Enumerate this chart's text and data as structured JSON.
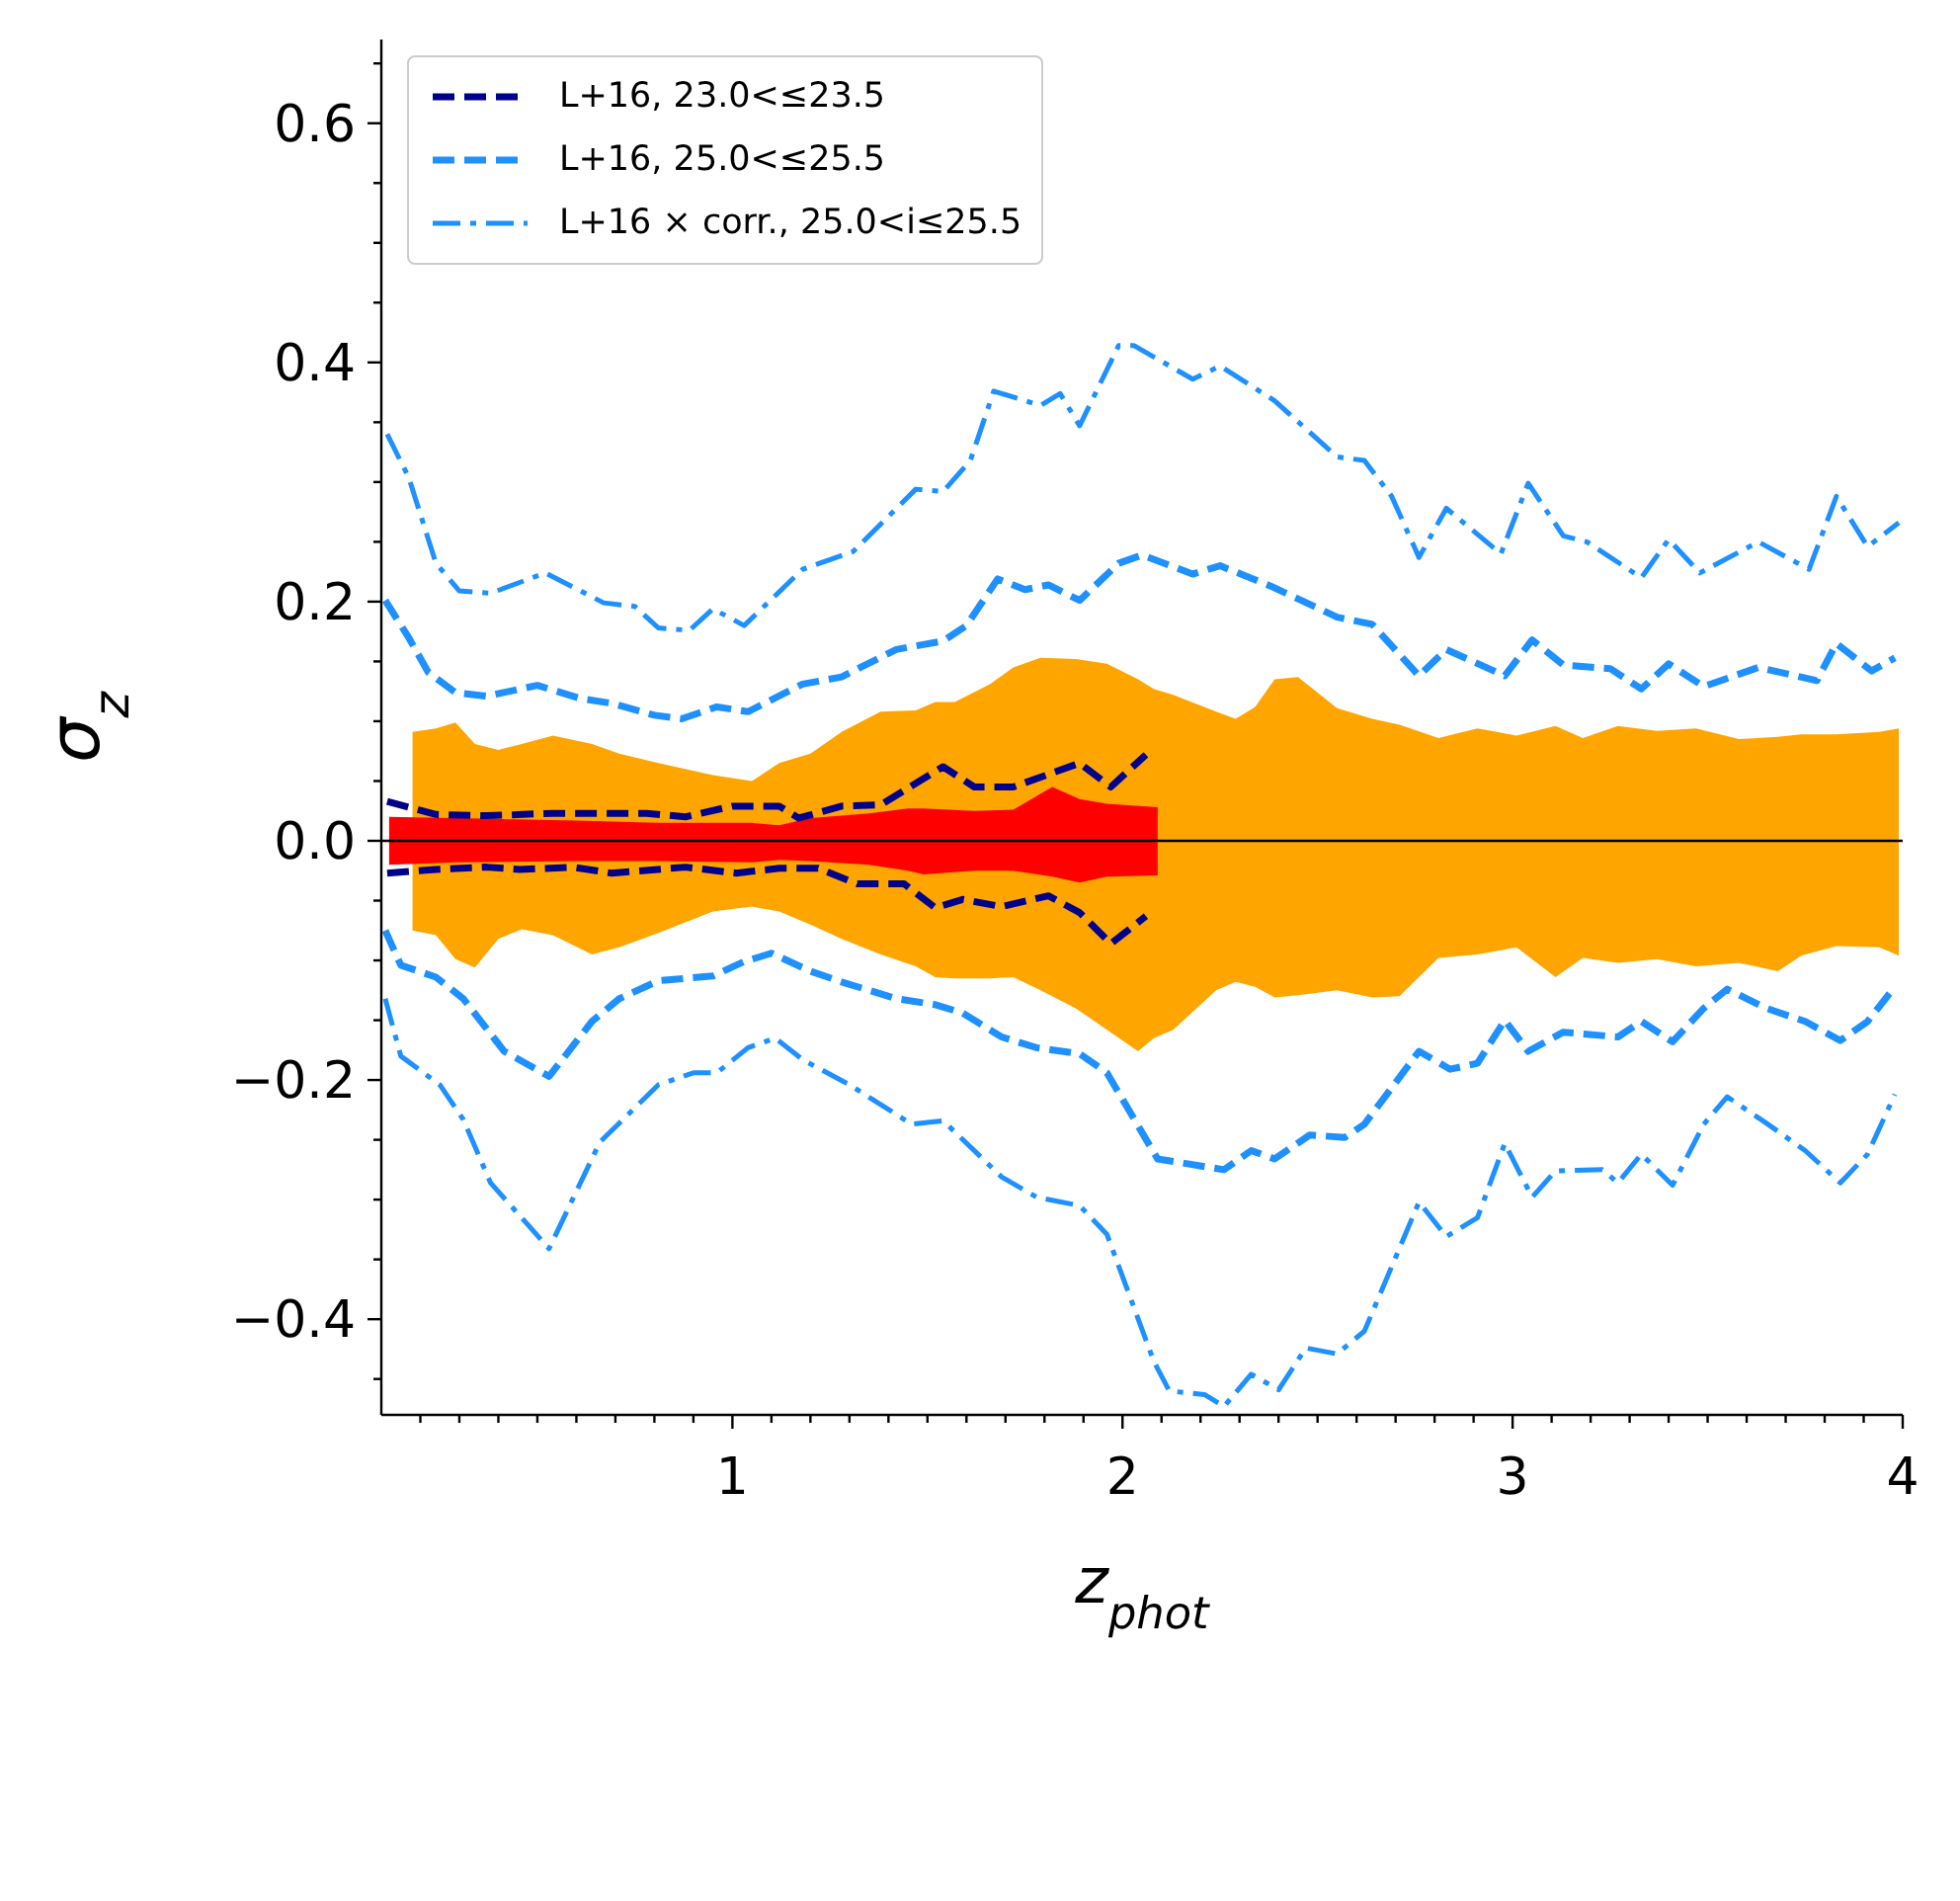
{
  "chart_data": {
    "type": "line",
    "xlabel": "z$_{phot}$",
    "ylabel": "σ$_{z}$",
    "xlim": [
      0.1,
      4
    ],
    "ylim": [
      -0.48,
      0.67
    ],
    "xticks": [
      {
        "value": 0.2,
        "label": null
      },
      {
        "value": 0.3,
        "label": null
      },
      {
        "value": 0.4,
        "label": null
      },
      {
        "value": 0.5,
        "label": null
      },
      {
        "value": 0.6,
        "label": null
      },
      {
        "value": 0.7,
        "label": null
      },
      {
        "value": 0.8,
        "label": null
      },
      {
        "value": 0.9,
        "label": null
      },
      1,
      {
        "value": 1.1,
        "label": null
      },
      {
        "value": 1.2,
        "label": null
      },
      {
        "value": 1.3,
        "label": null
      },
      {
        "value": 1.4,
        "label": null
      },
      {
        "value": 1.5,
        "label": null
      },
      {
        "value": 1.6,
        "label": null
      },
      {
        "value": 1.7,
        "label": null
      },
      {
        "value": 1.8,
        "label": null
      },
      {
        "value": 1.9,
        "label": null
      },
      2,
      {
        "value": 2.1,
        "label": null
      },
      {
        "value": 2.2,
        "label": null
      },
      {
        "value": 2.3,
        "label": null
      },
      {
        "value": 2.4,
        "label": null
      },
      {
        "value": 2.5,
        "label": null
      },
      {
        "value": 2.6,
        "label": null
      },
      {
        "value": 2.7,
        "label": null
      },
      {
        "value": 2.8,
        "label": null
      },
      {
        "value": 2.9,
        "label": null
      },
      3,
      {
        "value": 3.1,
        "label": null
      },
      {
        "value": 3.2,
        "label": null
      },
      {
        "value": 3.3,
        "label": null
      },
      {
        "value": 3.4,
        "label": null
      },
      {
        "value": 3.5,
        "label": null
      },
      {
        "value": 3.6,
        "label": null
      },
      {
        "value": 3.7,
        "label": null
      },
      {
        "value": 3.8,
        "label": null
      },
      {
        "value": 3.9,
        "label": null
      },
      4
    ],
    "yticks": [
      {
        "value": -0.45,
        "label": null
      },
      {
        "value": -0.4,
        "label": "−0.4"
      },
      {
        "value": -0.35,
        "label": null
      },
      {
        "value": -0.3,
        "label": null
      },
      {
        "value": -0.25,
        "label": null
      },
      {
        "value": -0.2,
        "label": "−0.2"
      },
      {
        "value": -0.15,
        "label": null
      },
      {
        "value": -0.1,
        "label": null
      },
      {
        "value": -0.05,
        "label": null
      },
      {
        "value": 0,
        "label": "0.0"
      },
      {
        "value": 0.05,
        "label": null
      },
      {
        "value": 0.1,
        "label": null
      },
      {
        "value": 0.15,
        "label": null
      },
      0.2,
      {
        "value": 0.25,
        "label": null
      },
      {
        "value": 0.3,
        "label": null
      },
      {
        "value": 0.35,
        "label": null
      },
      0.4,
      {
        "value": 0.45,
        "label": null
      },
      {
        "value": 0.5,
        "label": null
      },
      {
        "value": 0.55,
        "label": null
      },
      0.6,
      {
        "value": 0.65,
        "label": null
      }
    ],
    "legend": "top left",
    "ref_lines": [
      {
        "axis": "y",
        "value": 0,
        "color": "#000000"
      }
    ],
    "series": [
      {
        "type": "area",
        "color": "#ffa500",
        "x": [
          0.18,
          0.24,
          0.29,
          0.34,
          0.4,
          0.46,
          0.54,
          0.64,
          0.71,
          0.81,
          0.95,
          1.05,
          1.12,
          1.2,
          1.28,
          1.38,
          1.47,
          1.52,
          1.57,
          1.66,
          1.72,
          1.79,
          1.88,
          1.96,
          2.04,
          2.08,
          2.13,
          2.24,
          2.29,
          2.34,
          2.39,
          2.45,
          2.55,
          2.64,
          2.71,
          2.81,
          2.91,
          3.01,
          3.11,
          3.18,
          3.27,
          3.37,
          3.47,
          3.58,
          3.68,
          3.74,
          3.83,
          3.94,
          3.99
        ],
        "values": [
          0.091,
          0.094,
          0.099,
          0.081,
          0.076,
          0.081,
          0.088,
          0.081,
          0.073,
          0.065,
          0.055,
          0.05,
          0.065,
          0.073,
          0.091,
          0.108,
          0.109,
          0.116,
          0.116,
          0.131,
          0.145,
          0.153,
          0.152,
          0.148,
          0.135,
          0.127,
          0.122,
          0.108,
          0.102,
          0.112,
          0.135,
          0.137,
          0.111,
          0.102,
          0.097,
          0.086,
          0.094,
          0.088,
          0.096,
          0.086,
          0.096,
          0.092,
          0.094,
          0.085,
          0.087,
          0.089,
          0.089,
          0.091,
          0.094
        ]
      },
      {
        "type": "area",
        "color": "#ffa500",
        "x": [
          0.18,
          0.24,
          0.29,
          0.34,
          0.4,
          0.46,
          0.54,
          0.64,
          0.71,
          0.81,
          0.95,
          1.05,
          1.12,
          1.2,
          1.28,
          1.38,
          1.47,
          1.52,
          1.57,
          1.66,
          1.72,
          1.79,
          1.88,
          1.96,
          2.04,
          2.08,
          2.13,
          2.24,
          2.29,
          2.34,
          2.39,
          2.45,
          2.55,
          2.64,
          2.71,
          2.81,
          2.91,
          3.01,
          3.11,
          3.18,
          3.27,
          3.37,
          3.47,
          3.58,
          3.68,
          3.74,
          3.83,
          3.94,
          3.99
        ],
        "values": [
          -0.075,
          -0.079,
          -0.099,
          -0.106,
          -0.082,
          -0.074,
          -0.079,
          -0.095,
          -0.089,
          -0.077,
          -0.059,
          -0.055,
          -0.059,
          -0.07,
          -0.082,
          -0.095,
          -0.105,
          -0.114,
          -0.115,
          -0.115,
          -0.114,
          -0.125,
          -0.14,
          -0.158,
          -0.176,
          -0.165,
          -0.158,
          -0.125,
          -0.118,
          -0.122,
          -0.131,
          -0.129,
          -0.125,
          -0.131,
          -0.13,
          -0.098,
          -0.095,
          -0.089,
          -0.114,
          -0.098,
          -0.102,
          -0.099,
          -0.105,
          -0.102,
          -0.109,
          -0.096,
          -0.088,
          -0.089,
          -0.096
        ]
      },
      {
        "type": "area",
        "color": "#ff0000",
        "x": [
          0.12,
          0.29,
          0.6,
          0.81,
          1.05,
          1.12,
          1.2,
          1.35,
          1.45,
          1.49,
          1.62,
          1.72,
          1.82,
          1.89,
          1.96,
          2.09
        ],
        "values": [
          0.02,
          0.019,
          0.017,
          0.015,
          0.015,
          0.013,
          0.019,
          0.023,
          0.027,
          0.027,
          0.025,
          0.026,
          0.045,
          0.035,
          0.031,
          0.028
        ]
      },
      {
        "type": "area",
        "color": "#ff0000",
        "x": [
          0.12,
          0.29,
          0.6,
          0.81,
          1.05,
          1.12,
          1.2,
          1.35,
          1.45,
          1.49,
          1.62,
          1.72,
          1.82,
          1.89,
          1.96,
          2.09
        ],
        "values": [
          -0.02,
          -0.018,
          -0.017,
          -0.017,
          -0.018,
          -0.016,
          -0.017,
          -0.02,
          -0.025,
          -0.028,
          -0.025,
          -0.025,
          -0.03,
          -0.035,
          -0.03,
          -0.029
        ]
      },
      {
        "name": "L+16, 23.0<≤23.5",
        "color": "#00008b",
        "line_style": "dashed",
        "x": [
          0.115,
          0.24,
          0.37,
          0.54,
          0.78,
          0.88,
          1.0,
          1.12,
          1.17,
          1.28,
          1.38,
          1.54,
          1.62,
          1.72,
          1.89,
          1.97,
          2.06
        ],
        "values": [
          0.033,
          0.022,
          0.021,
          0.023,
          0.023,
          0.02,
          0.029,
          0.029,
          0.019,
          0.029,
          0.03,
          0.062,
          0.045,
          0.045,
          0.065,
          0.045,
          0.072
        ]
      },
      {
        "color": "#00008b",
        "line_style": "dashed",
        "x": [
          0.115,
          0.24,
          0.37,
          0.455,
          0.59,
          0.69,
          0.88,
          1.01,
          1.12,
          1.22,
          1.32,
          1.44,
          1.52,
          1.59,
          1.69,
          1.81,
          1.89,
          1.97,
          2.06
        ],
        "values": [
          -0.027,
          -0.024,
          -0.022,
          -0.024,
          -0.022,
          -0.027,
          -0.022,
          -0.027,
          -0.023,
          -0.023,
          -0.036,
          -0.036,
          -0.056,
          -0.049,
          -0.055,
          -0.046,
          -0.06,
          -0.086,
          -0.063
        ]
      },
      {
        "name": "L+16, 25.0<≤25.5",
        "color": "#1e90ff",
        "line_style": "dashed",
        "x": [
          0.11,
          0.17,
          0.22,
          0.29,
          0.37,
          0.5,
          0.61,
          0.69,
          0.8,
          0.87,
          0.96,
          1.04,
          1.18,
          1.28,
          1.42,
          1.54,
          1.6,
          1.68,
          1.75,
          1.81,
          1.89,
          1.99,
          2.05,
          2.18,
          2.25,
          2.38,
          2.55,
          2.64,
          2.76,
          2.83,
          2.98,
          3.05,
          3.13,
          3.25,
          3.33,
          3.4,
          3.49,
          3.63,
          3.78,
          3.83,
          3.92,
          3.98
        ],
        "values": [
          0.201,
          0.17,
          0.141,
          0.124,
          0.121,
          0.13,
          0.119,
          0.115,
          0.105,
          0.102,
          0.112,
          0.108,
          0.131,
          0.137,
          0.16,
          0.167,
          0.18,
          0.219,
          0.21,
          0.214,
          0.201,
          0.232,
          0.239,
          0.223,
          0.23,
          0.213,
          0.187,
          0.181,
          0.138,
          0.16,
          0.138,
          0.168,
          0.147,
          0.144,
          0.127,
          0.148,
          0.129,
          0.145,
          0.134,
          0.165,
          0.142,
          0.153
        ]
      },
      {
        "color": "#1e90ff",
        "line_style": "dashed",
        "x": [
          0.11,
          0.15,
          0.24,
          0.31,
          0.415,
          0.53,
          0.64,
          0.71,
          0.81,
          0.95,
          1.03,
          1.1,
          1.2,
          1.28,
          1.42,
          1.52,
          1.59,
          1.69,
          1.78,
          1.89,
          1.96,
          2.09,
          2.26,
          2.33,
          2.39,
          2.48,
          2.57,
          2.62,
          2.76,
          2.84,
          2.91,
          2.98,
          3.04,
          3.13,
          3.27,
          3.33,
          3.41,
          3.49,
          3.55,
          3.65,
          3.75,
          3.84,
          3.91,
          3.98
        ],
        "values": [
          -0.075,
          -0.104,
          -0.114,
          -0.132,
          -0.176,
          -0.197,
          -0.151,
          -0.132,
          -0.117,
          -0.113,
          -0.101,
          -0.094,
          -0.109,
          -0.118,
          -0.132,
          -0.137,
          -0.144,
          -0.164,
          -0.173,
          -0.178,
          -0.194,
          -0.266,
          -0.275,
          -0.259,
          -0.266,
          -0.246,
          -0.248,
          -0.237,
          -0.176,
          -0.191,
          -0.186,
          -0.15,
          -0.176,
          -0.16,
          -0.164,
          -0.151,
          -0.168,
          -0.14,
          -0.124,
          -0.14,
          -0.151,
          -0.167,
          -0.151,
          -0.122
        ]
      },
      {
        "name": "L+16 × corr., 25.0<i≤25.5",
        "color": "#1e90ff",
        "line_style": "dashdot",
        "x": [
          0.115,
          0.17,
          0.24,
          0.3,
          0.38,
          0.52,
          0.67,
          0.75,
          0.81,
          0.89,
          0.95,
          1.03,
          1.18,
          1.31,
          1.47,
          1.54,
          1.61,
          1.67,
          1.79,
          1.84,
          1.89,
          1.99,
          2.03,
          2.18,
          2.25,
          2.39,
          2.55,
          2.62,
          2.69,
          2.76,
          2.83,
          2.97,
          3.04,
          3.13,
          3.19,
          3.33,
          3.4,
          3.48,
          3.63,
          3.76,
          3.83,
          3.91,
          3.99
        ],
        "values": [
          0.34,
          0.304,
          0.232,
          0.209,
          0.207,
          0.224,
          0.199,
          0.196,
          0.178,
          0.176,
          0.194,
          0.18,
          0.227,
          0.242,
          0.294,
          0.292,
          0.318,
          0.376,
          0.364,
          0.374,
          0.347,
          0.414,
          0.414,
          0.386,
          0.397,
          0.368,
          0.321,
          0.318,
          0.288,
          0.237,
          0.278,
          0.24,
          0.299,
          0.255,
          0.25,
          0.22,
          0.252,
          0.224,
          0.25,
          0.227,
          0.288,
          0.246,
          0.266
        ]
      },
      {
        "color": "#1e90ff",
        "line_style": "dashdot",
        "x": [
          0.11,
          0.15,
          0.25,
          0.31,
          0.38,
          0.53,
          0.66,
          0.81,
          0.9,
          0.96,
          1.04,
          1.11,
          1.18,
          1.3,
          1.46,
          1.54,
          1.69,
          1.78,
          1.89,
          1.96,
          2.08,
          2.12,
          2.21,
          2.26,
          2.33,
          2.4,
          2.47,
          2.55,
          2.62,
          2.76,
          2.83,
          2.91,
          2.98,
          3.05,
          3.11,
          3.23,
          3.27,
          3.33,
          3.41,
          3.49,
          3.55,
          3.65,
          3.75,
          3.84,
          3.91,
          3.98
        ],
        "values": [
          -0.132,
          -0.18,
          -0.204,
          -0.233,
          -0.286,
          -0.341,
          -0.252,
          -0.204,
          -0.194,
          -0.194,
          -0.173,
          -0.165,
          -0.183,
          -0.204,
          -0.237,
          -0.234,
          -0.281,
          -0.298,
          -0.305,
          -0.329,
          -0.435,
          -0.46,
          -0.463,
          -0.473,
          -0.446,
          -0.459,
          -0.424,
          -0.429,
          -0.41,
          -0.302,
          -0.331,
          -0.315,
          -0.253,
          -0.298,
          -0.276,
          -0.275,
          -0.286,
          -0.262,
          -0.288,
          -0.237,
          -0.214,
          -0.236,
          -0.259,
          -0.286,
          -0.262,
          -0.212
        ]
      }
    ]
  }
}
